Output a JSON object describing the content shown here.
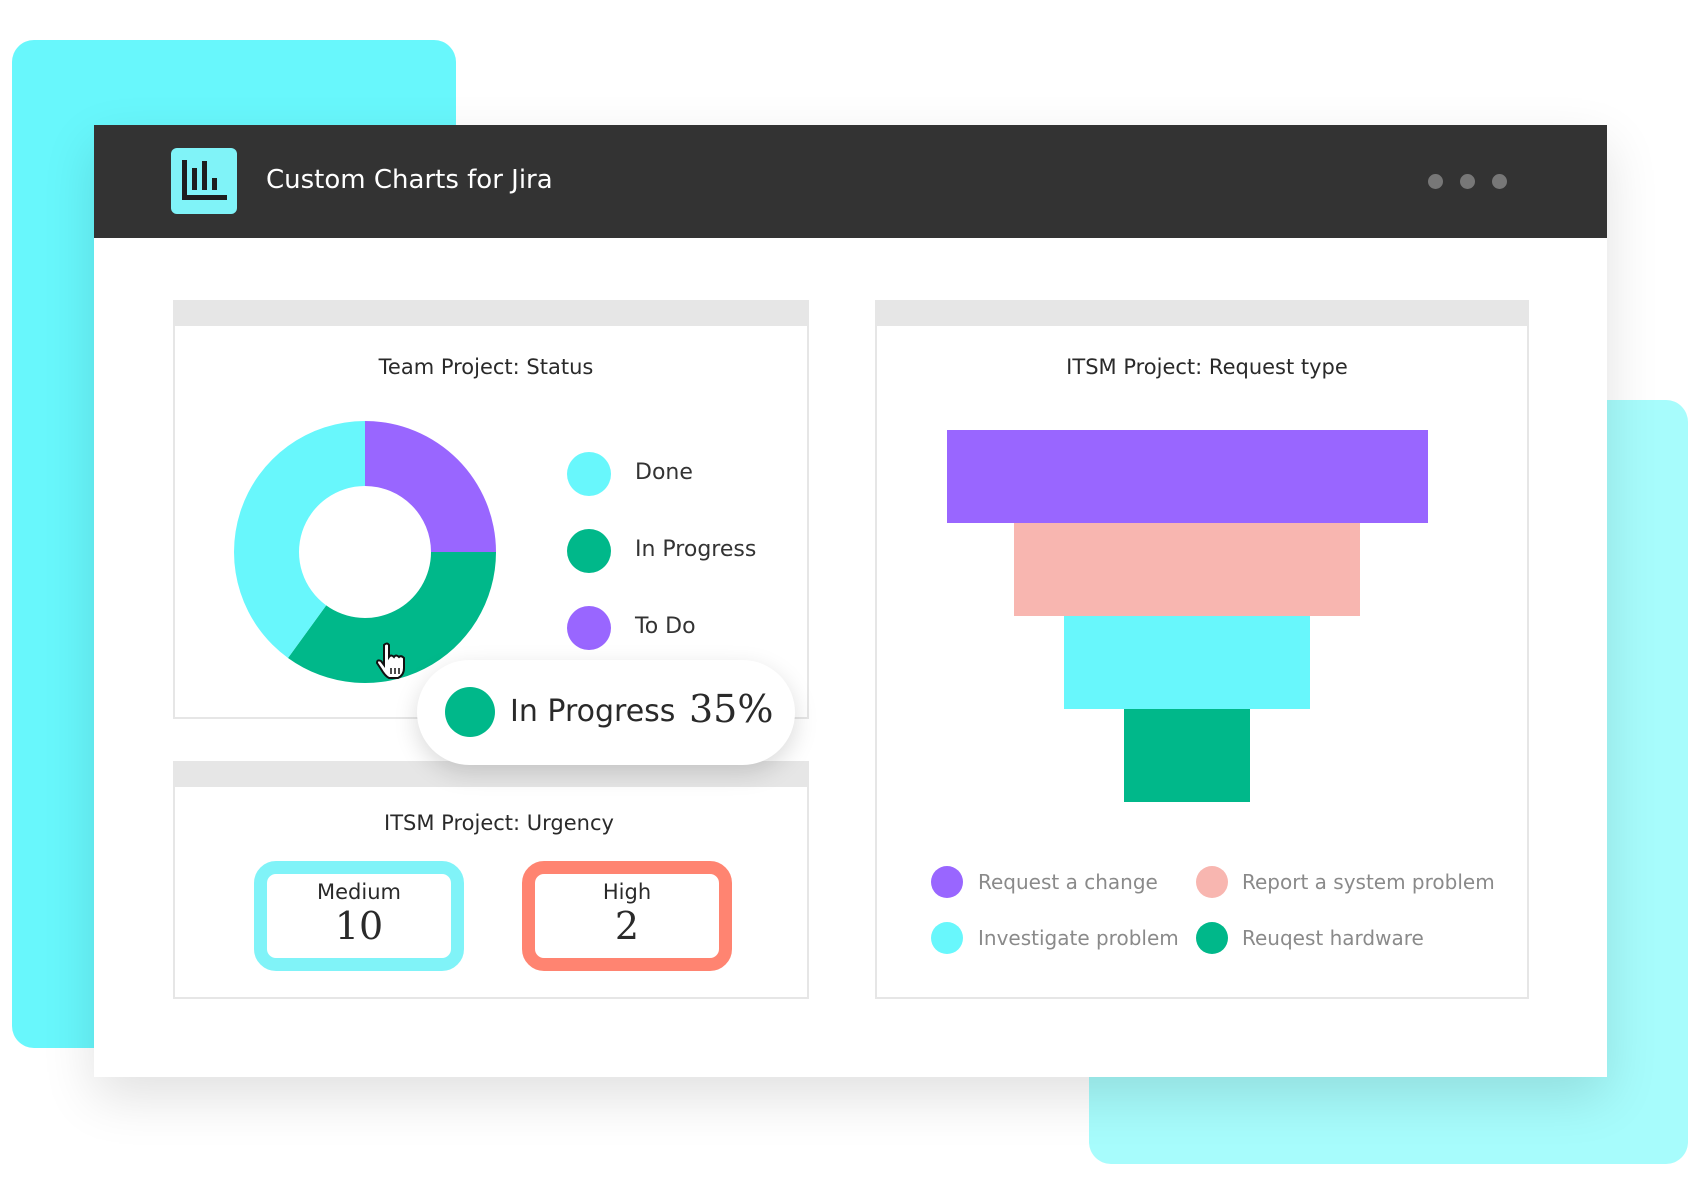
{
  "app": {
    "title": "Custom Charts for Jira",
    "logo_icon": "bar-chart-icon",
    "menu_icon": "more-dots-icon"
  },
  "status_panel": {
    "title": "Team Project: Status",
    "tooltip": {
      "label": "In Progress",
      "value": "35%"
    }
  },
  "urgency_panel": {
    "title": "ITSM Project: Urgency",
    "items": [
      {
        "label": "Medium",
        "value": "10",
        "color": "#80f3f8"
      },
      {
        "label": "High",
        "value": "2",
        "color": "#ff8471"
      }
    ]
  },
  "request_panel": {
    "title": "ITSM Project: Request type"
  },
  "chart_data": [
    {
      "type": "pie",
      "title": "Team Project: Status",
      "donut": true,
      "legend": "right",
      "categories": [
        "Done",
        "In Progress",
        "To Do"
      ],
      "values": [
        40,
        35,
        25
      ],
      "colors": [
        "#68f7fc",
        "#00b88a",
        "#9966ff"
      ]
    },
    {
      "type": "bar",
      "subtype": "funnel",
      "title": "ITSM Project: Request type",
      "legend": "bottom",
      "categories": [
        "Request a change",
        "Report a system problem",
        "Investigate problem",
        "Reuqest hardware"
      ],
      "values": [
        100,
        72,
        51,
        26
      ],
      "colors": [
        "#9966ff",
        "#f8b6b0",
        "#68f7fc",
        "#00b88a"
      ]
    }
  ]
}
